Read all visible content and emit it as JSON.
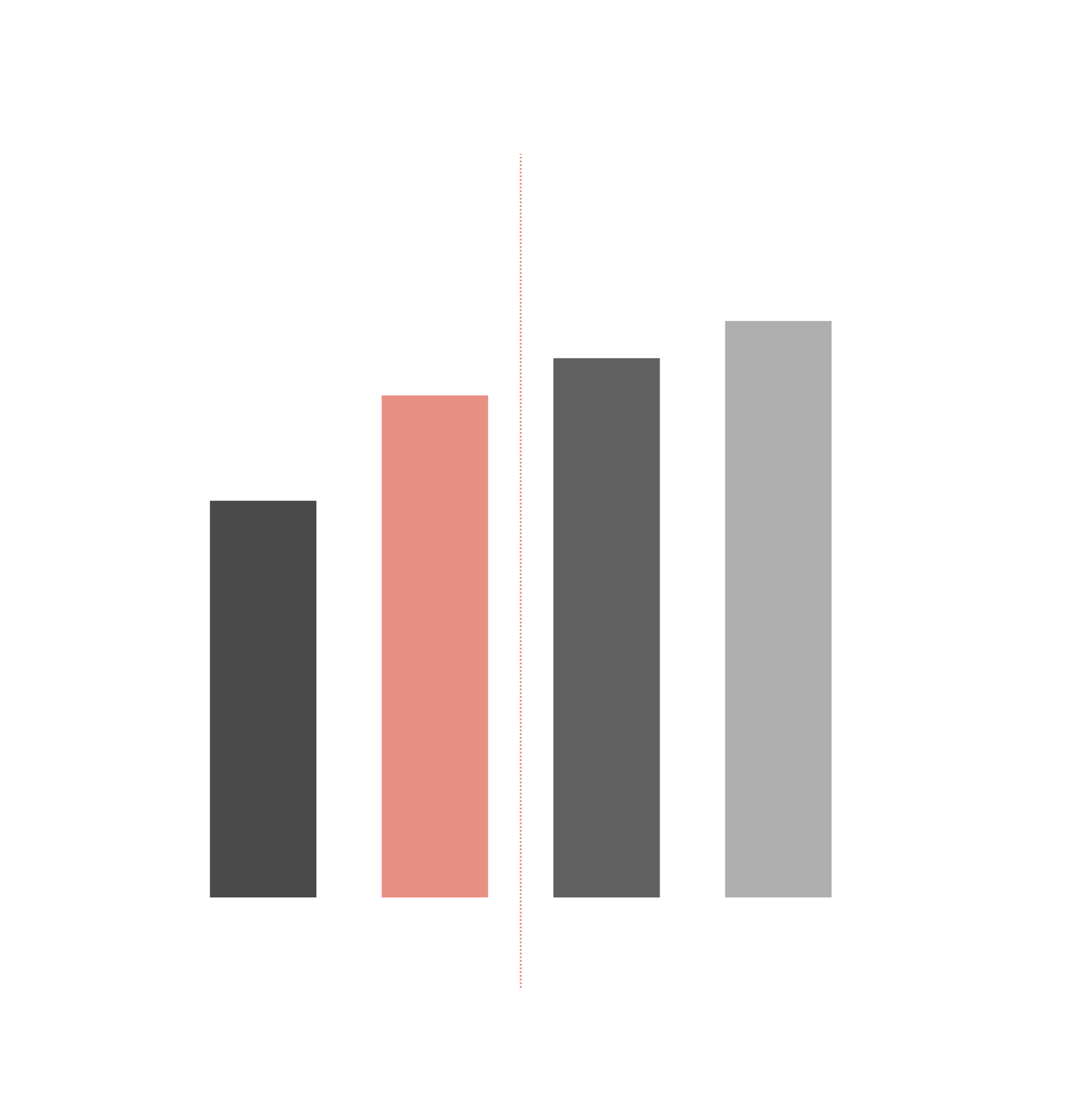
{
  "chart_data": {
    "type": "bar",
    "categories": [
      null,
      null,
      null,
      null
    ],
    "values": [
      64,
      81,
      87,
      93
    ],
    "colors": [
      "#4a4a4a",
      "#e99084",
      "#606060",
      "#afafaf"
    ],
    "ylim": [
      0,
      93
    ],
    "grid": false,
    "tick_labels": false
  }
}
